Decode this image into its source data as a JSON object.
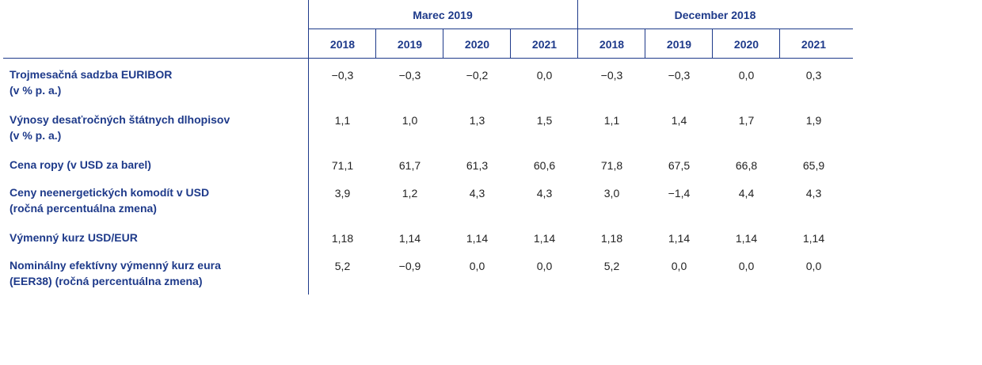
{
  "header": {
    "groups": [
      {
        "label": "Marec 2019",
        "years": [
          "2018",
          "2019",
          "2020",
          "2021"
        ]
      },
      {
        "label": "December 2018",
        "years": [
          "2018",
          "2019",
          "2020",
          "2021"
        ]
      }
    ]
  },
  "rows": [
    {
      "label_lines": [
        "Trojmesačná sadzba EURIBOR",
        "(v % p. a.)"
      ],
      "values": [
        "−0,3",
        "−0,3",
        "−0,2",
        "0,0",
        "−0,3",
        "−0,3",
        "0,0",
        "0,3"
      ]
    },
    {
      "label_lines": [
        "Výnosy desaťročných štátnych dlhopisov",
        "(v % p. a.)"
      ],
      "values": [
        "1,1",
        "1,0",
        "1,3",
        "1,5",
        "1,1",
        "1,4",
        "1,7",
        "1,9"
      ]
    },
    {
      "label_lines": [
        "Cena ropy (v USD za barel)"
      ],
      "values": [
        "71,1",
        "61,7",
        "61,3",
        "60,6",
        "71,8",
        "67,5",
        "66,8",
        "65,9"
      ]
    },
    {
      "label_lines": [
        "Ceny neenergetických komodít v USD",
        "(ročná percentuálna zmena)"
      ],
      "values": [
        "3,9",
        "1,2",
        "4,3",
        "4,3",
        "3,0",
        "−1,4",
        "4,4",
        "4,3"
      ]
    },
    {
      "label_lines": [
        "Výmenný kurz USD/EUR"
      ],
      "values": [
        "1,18",
        "1,14",
        "1,14",
        "1,14",
        "1,18",
        "1,14",
        "1,14",
        "1,14"
      ]
    },
    {
      "label_lines": [
        "Nominálny efektívny výmenný kurz eura",
        "(EER38) (ročná percentuálna zmena)"
      ],
      "values": [
        "5,2",
        "−0,9",
        "0,0",
        "0,0",
        "5,2",
        "0,0",
        "0,0",
        "0,0"
      ]
    }
  ]
}
